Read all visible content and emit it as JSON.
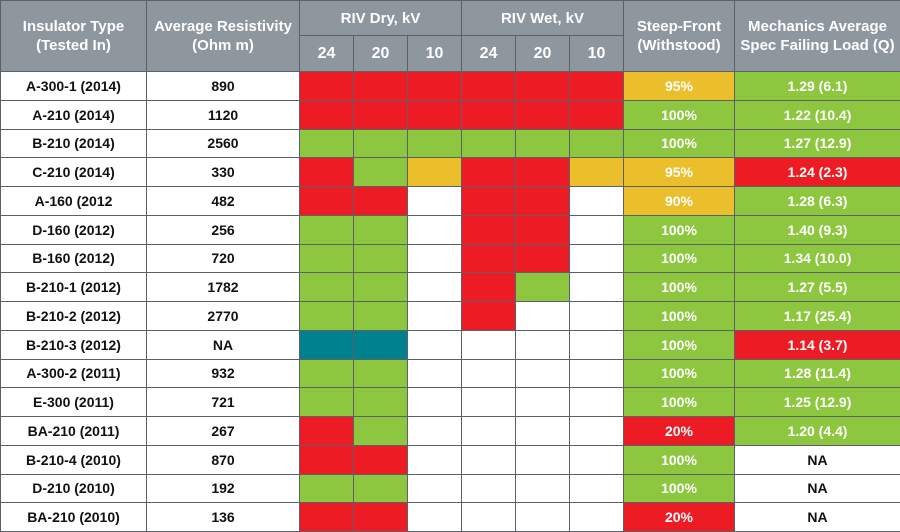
{
  "colors": {
    "red": "#ed1c24",
    "green": "#8dc63f",
    "yellow": "#ebbf2c",
    "teal": "#00818f",
    "white": "#ffffff",
    "header": "#8e969e"
  },
  "headers": {
    "type_line1": "Insulator Type",
    "type_line2": "(Tested In)",
    "resist_line1": "Average Resistivity",
    "resist_line2": "(Ohm m)",
    "riv_dry": "RIV Dry, kV",
    "riv_wet": "RIV Wet, kV",
    "steep_line1": "Steep-Front",
    "steep_line2": "(Withstood)",
    "mech_line1": "Mechanics Average",
    "mech_line2": "Spec Failing Load (Q)",
    "voltages": [
      "24",
      "20",
      "10"
    ]
  },
  "chart_data": {
    "type": "table",
    "rows": [
      {
        "type": "A-300-1 (2014)",
        "resistivity": "890",
        "dry": [
          "red",
          "red",
          "red"
        ],
        "wet": [
          "red",
          "red",
          "red"
        ],
        "steep": "95%",
        "steep_color": "yellow",
        "mech": "1.29 (6.1)",
        "mech_color": "green"
      },
      {
        "type": "A-210 (2014)",
        "resistivity": "1120",
        "dry": [
          "red",
          "red",
          "red"
        ],
        "wet": [
          "red",
          "red",
          "red"
        ],
        "steep": "100%",
        "steep_color": "green",
        "mech": "1.22 (10.4)",
        "mech_color": "green"
      },
      {
        "type": "B-210 (2014)",
        "resistivity": "2560",
        "dry": [
          "green",
          "green",
          "green"
        ],
        "wet": [
          "green",
          "green",
          "green"
        ],
        "steep": "100%",
        "steep_color": "green",
        "mech": "1.27 (12.9)",
        "mech_color": "green"
      },
      {
        "type": "C-210 (2014)",
        "resistivity": "330",
        "dry": [
          "red",
          "green",
          "yellow"
        ],
        "wet": [
          "red",
          "red",
          "yellow"
        ],
        "steep": "95%",
        "steep_color": "yellow",
        "mech": "1.24 (2.3)",
        "mech_color": "red"
      },
      {
        "type": "A-160 (2012",
        "resistivity": "482",
        "dry": [
          "red",
          "red",
          "white"
        ],
        "wet": [
          "red",
          "red",
          "white"
        ],
        "steep": "90%",
        "steep_color": "yellow",
        "mech": "1.28 (6.3)",
        "mech_color": "green"
      },
      {
        "type": "D-160 (2012)",
        "resistivity": "256",
        "dry": [
          "green",
          "green",
          "white"
        ],
        "wet": [
          "red",
          "red",
          "white"
        ],
        "steep": "100%",
        "steep_color": "green",
        "mech": "1.40 (9.3)",
        "mech_color": "green"
      },
      {
        "type": "B-160 (2012)",
        "resistivity": "720",
        "dry": [
          "green",
          "green",
          "white"
        ],
        "wet": [
          "red",
          "red",
          "white"
        ],
        "steep": "100%",
        "steep_color": "green",
        "mech": "1.34 (10.0)",
        "mech_color": "green"
      },
      {
        "type": "B-210-1 (2012)",
        "resistivity": "1782",
        "dry": [
          "green",
          "green",
          "white"
        ],
        "wet": [
          "red",
          "green",
          "white"
        ],
        "steep": "100%",
        "steep_color": "green",
        "mech": "1.27 (5.5)",
        "mech_color": "green"
      },
      {
        "type": "B-210-2 (2012)",
        "resistivity": "2770",
        "dry": [
          "green",
          "green",
          "white"
        ],
        "wet": [
          "red",
          "white",
          "white"
        ],
        "steep": "100%",
        "steep_color": "green",
        "mech": "1.17 (25.4)",
        "mech_color": "green"
      },
      {
        "type": "B-210-3 (2012)",
        "resistivity": "NA",
        "dry": [
          "teal",
          "teal",
          "white"
        ],
        "wet": [
          "white",
          "white",
          "white"
        ],
        "steep": "100%",
        "steep_color": "green",
        "mech": "1.14 (3.7)",
        "mech_color": "red"
      },
      {
        "type": "A-300-2 (2011)",
        "resistivity": "932",
        "dry": [
          "green",
          "green",
          "white"
        ],
        "wet": [
          "white",
          "white",
          "white"
        ],
        "steep": "100%",
        "steep_color": "green",
        "mech": "1.28 (11.4)",
        "mech_color": "green"
      },
      {
        "type": "E-300 (2011)",
        "resistivity": "721",
        "dry": [
          "green",
          "green",
          "white"
        ],
        "wet": [
          "white",
          "white",
          "white"
        ],
        "steep": "100%",
        "steep_color": "green",
        "mech": "1.25 (12.9)",
        "mech_color": "green"
      },
      {
        "type": "BA-210 (2011)",
        "resistivity": "267",
        "dry": [
          "red",
          "green",
          "white"
        ],
        "wet": [
          "white",
          "white",
          "white"
        ],
        "steep": "20%",
        "steep_color": "red",
        "mech": "1.20 (4.4)",
        "mech_color": "green"
      },
      {
        "type": "B-210-4 (2010)",
        "resistivity": "870",
        "dry": [
          "red",
          "red",
          "white"
        ],
        "wet": [
          "white",
          "white",
          "white"
        ],
        "steep": "100%",
        "steep_color": "green",
        "mech": "NA",
        "mech_color": "white"
      },
      {
        "type": "D-210 (2010)",
        "resistivity": "192",
        "dry": [
          "green",
          "green",
          "white"
        ],
        "wet": [
          "white",
          "white",
          "white"
        ],
        "steep": "100%",
        "steep_color": "green",
        "mech": "NA",
        "mech_color": "white"
      },
      {
        "type": "BA-210 (2010)",
        "resistivity": "136",
        "dry": [
          "red",
          "red",
          "white"
        ],
        "wet": [
          "white",
          "white",
          "white"
        ],
        "steep": "20%",
        "steep_color": "red",
        "mech": "NA",
        "mech_color": "white"
      }
    ]
  }
}
